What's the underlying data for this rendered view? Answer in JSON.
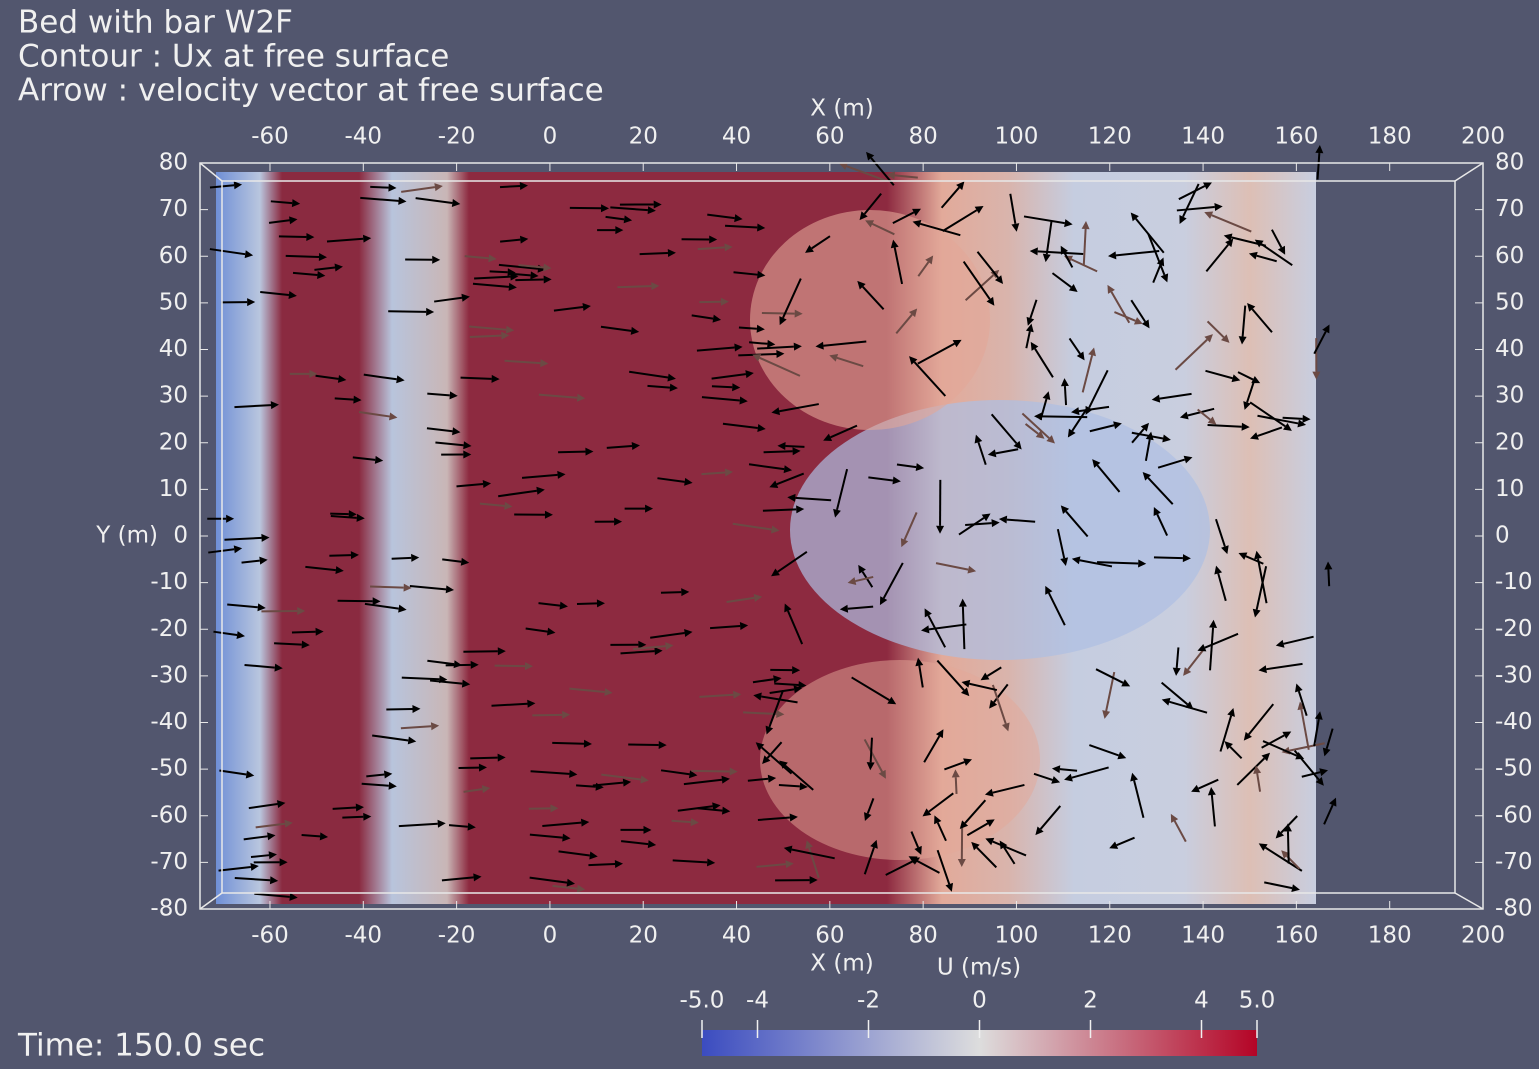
{
  "title_lines": [
    "Bed with bar W2F",
    "Contour : Ux at free surface",
    "Arrow : velocity vector at free surface"
  ],
  "time_label": "Time: 150.0 sec",
  "chart_data": {
    "type": "contour",
    "xlabel": "X (m)",
    "ylabel": "Y (m)",
    "xlim": [
      -75,
      200
    ],
    "ylim": [
      -80,
      80
    ],
    "xticks": [
      -60,
      -40,
      -20,
      0,
      20,
      40,
      60,
      80,
      100,
      120,
      140,
      160,
      180,
      200
    ],
    "yticks": [
      80,
      70,
      60,
      50,
      40,
      30,
      20,
      10,
      0,
      -10,
      -20,
      -30,
      -40,
      -50,
      -60,
      -70,
      -80
    ],
    "colorbar": {
      "title": "U (m/s)",
      "range": [
        -5,
        5
      ],
      "ticks": [
        {
          "value": -5,
          "label": "-5.0"
        },
        -4,
        -2,
        0,
        2,
        4,
        {
          "value": 5,
          "label": "5.0"
        }
      ],
      "colors": [
        "#3b4cc0",
        "#dddddd",
        "#b40426"
      ]
    }
  }
}
